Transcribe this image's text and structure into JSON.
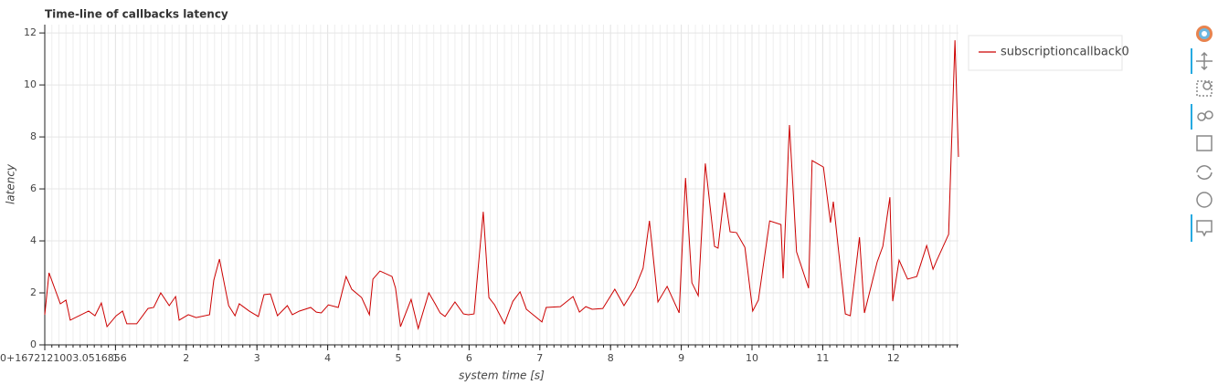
{
  "chart_data": {
    "type": "line",
    "title": "Time-line of callbacks latency",
    "x_label": "system time [s]",
    "y_label": "latency",
    "x": [
      0,
      0.06,
      0.22,
      0.3,
      0.36,
      0.62,
      0.71,
      0.8,
      0.88,
      1.01,
      1.1,
      1.16,
      1.3,
      1.46,
      1.54,
      1.64,
      1.76,
      1.85,
      1.9,
      2.03,
      2.14,
      2.33,
      2.39,
      2.47,
      2.6,
      2.69,
      2.75,
      2.89,
      3.02,
      3.1,
      3.19,
      3.29,
      3.43,
      3.5,
      3.6,
      3.76,
      3.84,
      3.91,
      4.01,
      4.15,
      4.26,
      4.34,
      4.48,
      4.59,
      4.64,
      4.74,
      4.91,
      4.96,
      5.03,
      5.18,
      5.28,
      5.43,
      5.52,
      5.59,
      5.66,
      5.8,
      5.92,
      5.99,
      6.07,
      6.2,
      6.28,
      6.36,
      6.5,
      6.62,
      6.72,
      6.81,
      7.03,
      7.09,
      7.29,
      7.47,
      7.56,
      7.65,
      7.74,
      7.89,
      8.06,
      8.19,
      8.35,
      8.46,
      8.55,
      8.67,
      8.8,
      8.97,
      9.06,
      9.15,
      9.24,
      9.34,
      9.47,
      9.52,
      9.61,
      9.69,
      9.78,
      9.9,
      10.01,
      10.09,
      10.25,
      10.41,
      10.44,
      10.53,
      10.63,
      10.8,
      10.85,
      11.01,
      11.11,
      11.15,
      11.32,
      11.39,
      11.52,
      11.59,
      11.77,
      11.85,
      11.95,
      11.99,
      12.08,
      12.2,
      12.33,
      12.47,
      12.56,
      12.61,
      12.78,
      12.87,
      12.92
    ],
    "series": [
      {
        "name": "subscriptioncallback0",
        "color": "#cc0000",
        "values": [
          1.16,
          2.77,
          1.58,
          1.72,
          0.95,
          1.3,
          1.12,
          1.61,
          0.7,
          1.12,
          1.3,
          0.81,
          0.81,
          1.4,
          1.44,
          2.0,
          1.51,
          1.86,
          0.95,
          1.16,
          1.05,
          1.16,
          2.49,
          3.3,
          1.51,
          1.12,
          1.58,
          1.3,
          1.09,
          1.93,
          1.96,
          1.12,
          1.51,
          1.16,
          1.3,
          1.44,
          1.26,
          1.23,
          1.54,
          1.44,
          2.63,
          2.14,
          1.82,
          1.16,
          2.53,
          2.84,
          2.63,
          2.18,
          0.7,
          1.75,
          0.63,
          2.0,
          1.58,
          1.23,
          1.09,
          1.65,
          1.19,
          1.16,
          1.19,
          5.12,
          1.82,
          1.54,
          0.81,
          1.68,
          2.04,
          1.37,
          0.88,
          1.44,
          1.47,
          1.86,
          1.26,
          1.47,
          1.37,
          1.4,
          2.14,
          1.51,
          2.21,
          2.95,
          4.77,
          1.65,
          2.25,
          1.23,
          6.42,
          2.39,
          1.89,
          6.98,
          3.79,
          3.72,
          5.86,
          4.35,
          4.32,
          3.75,
          1.3,
          1.72,
          4.77,
          4.63,
          2.56,
          8.46,
          3.58,
          2.18,
          7.09,
          6.84,
          4.7,
          5.51,
          1.19,
          1.12,
          4.14,
          1.23,
          3.19,
          3.79,
          5.68,
          1.68,
          3.26,
          2.53,
          2.63,
          3.82,
          2.91,
          3.23,
          4.25,
          11.72,
          7.23
        ]
      }
    ],
    "xlim": [
      0,
      12.92
    ],
    "ylim": [
      0,
      12.32
    ],
    "xticks": [
      {
        "value": 0,
        "label": "0+1672121003.0516856"
      },
      1,
      2,
      3,
      4,
      5,
      6,
      7,
      8,
      9,
      10,
      11,
      12
    ],
    "yticks": [
      0,
      2,
      4,
      6,
      8,
      10,
      12
    ],
    "grid": true
  }
}
